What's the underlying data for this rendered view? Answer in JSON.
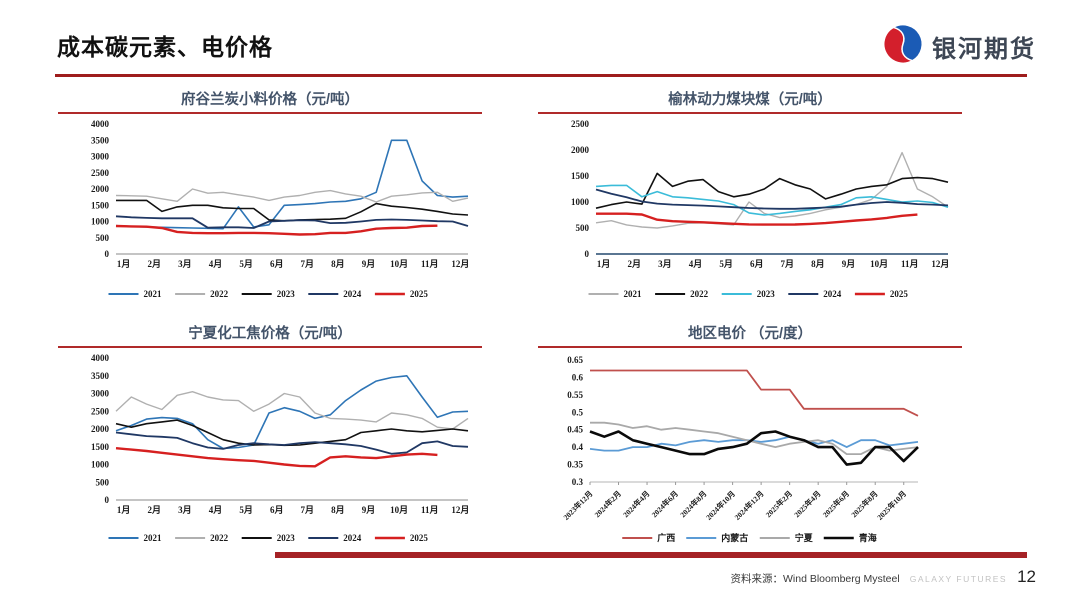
{
  "header": {
    "title": "成本碳元素、电价格",
    "logo_text": "银河期货"
  },
  "footer": {
    "source_label": "资料来源：Wind Bloomberg Mysteel",
    "brand": "GALAXY FUTURES",
    "page_number": "12"
  },
  "colors": {
    "accent_rule": "#9e1c1c",
    "bottom_bar": "#a52226",
    "chart_title": "#44546a",
    "title_underline": "#b02a2a",
    "logo_red": "#d31f2c",
    "logo_blue": "#1b5bb5"
  },
  "chart_data": [
    {
      "type": "line",
      "title": "府谷兰炭小料价格（元/吨）",
      "ylabel": "",
      "xlabel": "",
      "ylim": [
        0,
        4000
      ],
      "ytick_step": 500,
      "ytick_trim": false,
      "x_count": 24,
      "label_step": 2,
      "label_offset": 0.5,
      "x_labels": [
        "1月",
        "2月",
        "3月",
        "4月",
        "5月",
        "6月",
        "7月",
        "8月",
        "9月",
        "10月",
        "11月",
        "12月"
      ],
      "legend_position": "bottom",
      "series": [
        {
          "name": "2021",
          "color": "#2e75b6",
          "width": 1.6,
          "values": [
            870,
            850,
            830,
            820,
            810,
            800,
            790,
            780,
            1450,
            830,
            900,
            1500,
            1520,
            1550,
            1600,
            1620,
            1700,
            1900,
            3500,
            3500,
            2250,
            1800,
            1750,
            1780
          ]
        },
        {
          "name": "2022",
          "color": "#b0b0b0",
          "width": 1.4,
          "values": [
            1800,
            1790,
            1780,
            1700,
            1620,
            2000,
            1870,
            1900,
            1820,
            1750,
            1650,
            1750,
            1800,
            1900,
            1950,
            1850,
            1780,
            1600,
            1780,
            1820,
            1880,
            1900,
            1620,
            1720
          ]
        },
        {
          "name": "2023",
          "color": "#111111",
          "width": 1.6,
          "values": [
            1650,
            1650,
            1650,
            1310,
            1450,
            1500,
            1500,
            1420,
            1400,
            1400,
            1050,
            1020,
            1050,
            1060,
            1070,
            1100,
            1300,
            1550,
            1470,
            1430,
            1380,
            1310,
            1230,
            1200
          ]
        },
        {
          "name": "2024",
          "color": "#203864",
          "width": 1.8,
          "values": [
            1160,
            1130,
            1110,
            1100,
            1100,
            1100,
            810,
            820,
            820,
            800,
            1000,
            1020,
            1040,
            1030,
            950,
            960,
            1000,
            1050,
            1060,
            1050,
            1030,
            1010,
            1000,
            860
          ]
        },
        {
          "name": "2025",
          "color": "#d62020",
          "width": 2.4,
          "values": [
            860,
            850,
            840,
            800,
            680,
            650,
            640,
            640,
            650,
            650,
            640,
            620,
            600,
            610,
            650,
            650,
            700,
            780,
            800,
            810,
            860,
            870
          ]
        }
      ]
    },
    {
      "type": "line",
      "title": "榆林动力煤块煤（元/吨）",
      "ylabel": "",
      "xlabel": "",
      "ylim": [
        0,
        2500
      ],
      "ytick_step": 500,
      "ytick_trim": false,
      "x_count": 24,
      "label_step": 2,
      "label_offset": 0.5,
      "x_labels": [
        "1月",
        "2月",
        "3月",
        "4月",
        "5月",
        "6月",
        "7月",
        "8月",
        "9月",
        "10月",
        "11月",
        "12月"
      ],
      "legend_position": "bottom",
      "series": [
        {
          "name": "2021",
          "color": "#b0b0b0",
          "width": 1.4,
          "values": [
            600,
            640,
            560,
            520,
            500,
            540,
            590,
            600,
            580,
            560,
            1000,
            780,
            700,
            730,
            780,
            850,
            900,
            950,
            1050,
            1300,
            1950,
            1250,
            1100,
            900
          ]
        },
        {
          "name": "2022",
          "color": "#111111",
          "width": 1.6,
          "values": [
            880,
            950,
            1000,
            960,
            1550,
            1300,
            1400,
            1430,
            1200,
            1100,
            1150,
            1250,
            1450,
            1330,
            1250,
            1060,
            1150,
            1250,
            1300,
            1330,
            1450,
            1470,
            1450,
            1380
          ]
        },
        {
          "name": "2023",
          "color": "#3bbcd9",
          "width": 1.6,
          "values": [
            1300,
            1320,
            1320,
            1100,
            1200,
            1100,
            1080,
            1050,
            1020,
            950,
            790,
            750,
            780,
            820,
            850,
            900,
            950,
            1080,
            1100,
            1050,
            1000,
            1020,
            990,
            900
          ]
        },
        {
          "name": "2024",
          "color": "#203864",
          "width": 1.8,
          "values": [
            1240,
            1160,
            1090,
            1010,
            970,
            950,
            940,
            930,
            915,
            900,
            885,
            875,
            870,
            870,
            880,
            895,
            910,
            950,
            980,
            1000,
            985,
            960,
            950,
            935
          ]
        },
        {
          "name": "2025",
          "color": "#d62020",
          "width": 2.4,
          "values": [
            775,
            775,
            775,
            760,
            660,
            630,
            620,
            610,
            595,
            580,
            570,
            565,
            565,
            568,
            578,
            595,
            620,
            645,
            665,
            695,
            735,
            758
          ]
        }
      ]
    },
    {
      "type": "line",
      "title": "宁夏化工焦价格（元/吨）",
      "ylabel": "",
      "xlabel": "",
      "ylim": [
        0,
        4000
      ],
      "ytick_step": 500,
      "ytick_trim": false,
      "x_count": 24,
      "label_step": 2,
      "label_offset": 0.5,
      "x_labels": [
        "1月",
        "2月",
        "3月",
        "4月",
        "5月",
        "6月",
        "7月",
        "8月",
        "9月",
        "10月",
        "11月",
        "12月"
      ],
      "legend_position": "bottom",
      "series": [
        {
          "name": "2021",
          "color": "#2e75b6",
          "width": 1.6,
          "values": [
            1950,
            2100,
            2280,
            2320,
            2300,
            2150,
            1700,
            1450,
            1480,
            1550,
            2450,
            2600,
            2500,
            2300,
            2400,
            2800,
            3100,
            3350,
            3450,
            3500,
            2900,
            2330,
            2480,
            2500
          ]
        },
        {
          "name": "2022",
          "color": "#b0b0b0",
          "width": 1.4,
          "values": [
            2500,
            2900,
            2700,
            2550,
            2950,
            3050,
            2900,
            2820,
            2800,
            2500,
            2700,
            3000,
            2900,
            2450,
            2300,
            2280,
            2250,
            2200,
            2450,
            2400,
            2300,
            2050,
            2000,
            2300
          ]
        },
        {
          "name": "2023",
          "color": "#111111",
          "width": 1.6,
          "values": [
            2150,
            2050,
            2150,
            2200,
            2250,
            2100,
            1900,
            1700,
            1600,
            1550,
            1560,
            1540,
            1550,
            1600,
            1650,
            1700,
            1900,
            1950,
            2000,
            1950,
            1920,
            1960,
            2000,
            1950
          ]
        },
        {
          "name": "2024",
          "color": "#203864",
          "width": 1.8,
          "values": [
            1900,
            1850,
            1800,
            1780,
            1750,
            1600,
            1480,
            1440,
            1550,
            1600,
            1570,
            1550,
            1600,
            1630,
            1600,
            1570,
            1520,
            1420,
            1300,
            1340,
            1600,
            1650,
            1520,
            1500
          ]
        },
        {
          "name": "2025",
          "color": "#d62020",
          "width": 2.4,
          "values": [
            1460,
            1420,
            1380,
            1330,
            1280,
            1230,
            1180,
            1150,
            1120,
            1100,
            1050,
            1000,
            960,
            950,
            1200,
            1230,
            1200,
            1180,
            1230,
            1280,
            1300,
            1270
          ]
        }
      ]
    },
    {
      "type": "line",
      "title": "地区电价 （元/度）",
      "ylabel": "",
      "xlabel": "",
      "ylim": [
        0.3,
        0.65
      ],
      "ytick_step": 0.05,
      "ytick_trim": true,
      "x_count": 24,
      "label_step": 2,
      "label_offset": 0,
      "x_labels": [
        "2023年12月",
        "2024年2月",
        "2024年4月",
        "2024年6月",
        "2024年8月",
        "2024年10月",
        "2024年12月",
        "2025年2月",
        "2025年4月",
        "2025年6月",
        "2025年8月",
        "2025年10月"
      ],
      "legend_position": "bottom",
      "series": [
        {
          "name": "广西",
          "color": "#c0504d",
          "width": 1.8,
          "values": [
            0.62,
            0.62,
            0.62,
            0.62,
            0.62,
            0.62,
            0.62,
            0.62,
            0.62,
            0.62,
            0.62,
            0.62,
            0.565,
            0.565,
            0.565,
            0.51,
            0.51,
            0.51,
            0.51,
            0.51,
            0.51,
            0.51,
            0.51,
            0.49
          ]
        },
        {
          "name": "内蒙古",
          "color": "#5b9bd5",
          "width": 1.8,
          "values": [
            0.395,
            0.39,
            0.39,
            0.4,
            0.4,
            0.41,
            0.405,
            0.415,
            0.42,
            0.415,
            0.42,
            0.42,
            0.415,
            0.42,
            0.43,
            0.42,
            0.41,
            0.42,
            0.4,
            0.42,
            0.42,
            0.405,
            0.41,
            0.415
          ]
        },
        {
          "name": "宁夏",
          "color": "#a9a9a9",
          "width": 1.8,
          "values": [
            0.47,
            0.47,
            0.465,
            0.455,
            0.46,
            0.45,
            0.455,
            0.45,
            0.445,
            0.44,
            0.43,
            0.42,
            0.41,
            0.4,
            0.41,
            0.415,
            0.42,
            0.41,
            0.38,
            0.38,
            0.4,
            0.39,
            0.395,
            0.4
          ]
        },
        {
          "name": "青海",
          "color": "#0a0a0a",
          "width": 2.6,
          "values": [
            0.445,
            0.43,
            0.445,
            0.42,
            0.41,
            0.4,
            0.39,
            0.38,
            0.38,
            0.395,
            0.4,
            0.41,
            0.44,
            0.445,
            0.43,
            0.42,
            0.4,
            0.4,
            0.35,
            0.355,
            0.4,
            0.4,
            0.36,
            0.4
          ]
        }
      ]
    }
  ]
}
